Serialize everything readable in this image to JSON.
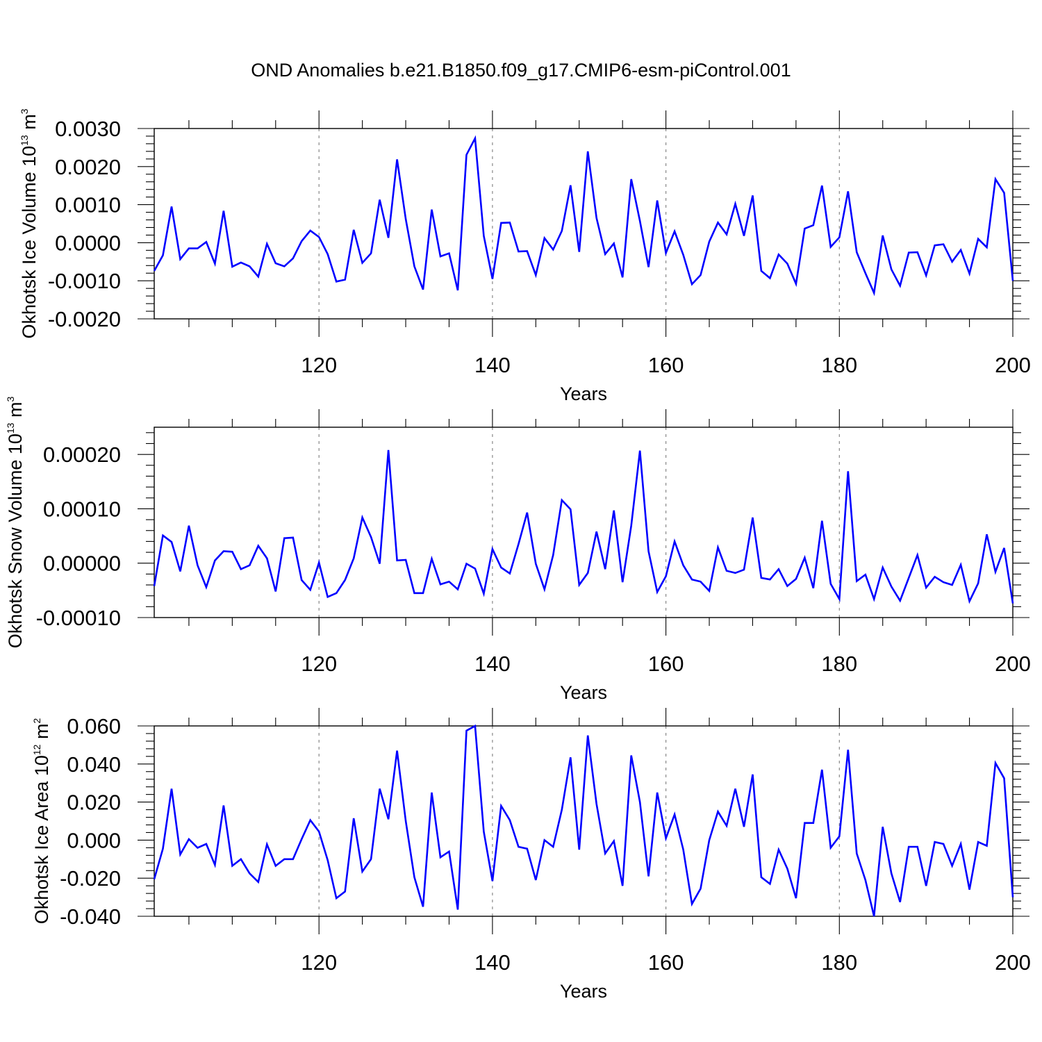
{
  "title": "OND Anomalies b.e21.B1850.f09_g17.CMIP6-esm-piControl.001",
  "colors": {
    "series": "#0000ff",
    "grid": "#888888",
    "axis": "#000000"
  },
  "chart_data": [
    {
      "type": "line",
      "xlabel": "Years",
      "ylabel": {
        "main": "Okhotsk Ice Volume 10",
        "sup_exp": "13",
        "unit": " m",
        "sup_unit": "3"
      },
      "xlim": [
        101,
        200
      ],
      "ylim": [
        -0.002,
        0.003
      ],
      "xticks": [
        120,
        140,
        160,
        180,
        200
      ],
      "xtick_labels": [
        "120",
        "140",
        "160",
        "180",
        "200"
      ],
      "yticks": [
        -0.002,
        -0.001,
        0.0,
        0.001,
        0.002,
        0.003
      ],
      "ytick_labels": [
        "-0.0020",
        "-0.0010",
        "0.0000",
        "0.0010",
        "0.0020",
        "0.0030"
      ],
      "grid": "vertical dashed at major x ticks",
      "series": [
        {
          "x_start": 101,
          "x_step": 1,
          "values": [
            -0.00074,
            -0.00033,
            0.00095,
            -0.00043,
            -0.00015,
            -0.00015,
            2e-05,
            -0.00055,
            0.00084,
            -0.00063,
            -0.00052,
            -0.00062,
            -0.00089,
            -3e-05,
            -0.00054,
            -0.00062,
            -0.00041,
            4e-05,
            0.00032,
            0.00015,
            -0.0003,
            -0.00102,
            -0.00097,
            0.00034,
            -0.00053,
            -0.00028,
            0.00113,
            0.00013,
            0.00219,
            0.00062,
            -0.00062,
            -0.00123,
            0.00087,
            -0.00036,
            -0.00028,
            -0.00125,
            0.00231,
            0.00274,
            0.00018,
            -0.00095,
            0.00052,
            0.00053,
            -0.00023,
            -0.00022,
            -0.00085,
            0.00012,
            -0.00018,
            0.00031,
            0.00151,
            -0.00024,
            0.0024,
            0.00065,
            -0.0003,
            -2e-05,
            -0.00091,
            0.00167,
            0.00057,
            -0.00064,
            0.00111,
            -0.00027,
            0.0003,
            -0.00032,
            -0.00109,
            -0.00085,
            3e-05,
            0.00053,
            0.00022,
            0.00102,
            0.00018,
            0.00124,
            -0.00074,
            -0.00093,
            -0.00031,
            -0.00055,
            -0.00108,
            0.00037,
            0.00046,
            0.0015,
            -0.00011,
            0.00014,
            0.00135,
            -0.00025,
            -0.0008,
            -0.00132,
            0.00019,
            -0.0007,
            -0.00113,
            -0.00026,
            -0.00025,
            -0.00086,
            -7e-05,
            -4e-05,
            -0.0005,
            -0.00019,
            -0.00081,
            0.0001,
            -0.00012,
            0.00167,
            0.00131,
            -0.001
          ]
        }
      ]
    },
    {
      "type": "line",
      "xlabel": "Years",
      "ylabel": {
        "main": "Okhotsk Snow Volume 10",
        "sup_exp": "13",
        "unit": " m",
        "sup_unit": "3"
      },
      "xlim": [
        101,
        200
      ],
      "ylim": [
        -0.0001,
        0.00025
      ],
      "xticks": [
        120,
        140,
        160,
        180,
        200
      ],
      "xtick_labels": [
        "120",
        "140",
        "160",
        "180",
        "200"
      ],
      "yticks": [
        -0.0001,
        0.0,
        0.0001,
        0.0002
      ],
      "ytick_labels": [
        "-0.00010",
        "0.00000",
        "0.00010",
        "0.00020"
      ],
      "grid": "vertical dashed at major x ticks",
      "series": [
        {
          "x_start": 101,
          "x_step": 1,
          "values": [
            -4.2e-05,
            5.1e-05,
            3.9e-05,
            -1.5e-05,
            6.9e-05,
            -4e-06,
            -4.4e-05,
            5e-06,
            2.2e-05,
            2.1e-05,
            -1.1e-05,
            -4e-06,
            3.2e-05,
            9e-06,
            -5.2e-05,
            4.6e-05,
            4.7e-05,
            -3.1e-05,
            -4.9e-05,
            1e-06,
            -6.2e-05,
            -5.5e-05,
            -3.1e-05,
            9e-06,
            8.4e-05,
            4.8e-05,
            -1e-06,
            0.000208,
            5e-06,
            6e-06,
            -5.5e-05,
            -5.5e-05,
            8e-06,
            -3.9e-05,
            -3.4e-05,
            -4.8e-05,
            -1e-06,
            -1e-05,
            -5.6e-05,
            2.6e-05,
            -8e-06,
            -1.9e-05,
            3.5e-05,
            9.3e-05,
            -1e-06,
            -4.8e-05,
            1.5e-05,
            0.000116,
            9.9e-05,
            -4e-05,
            -1.8e-05,
            5.8e-05,
            -1.1e-05,
            9.7e-05,
            -3.5e-05,
            6.9e-05,
            0.000207,
            2.2e-05,
            -5.3e-05,
            -2.4e-05,
            4e-05,
            -4e-06,
            -3e-05,
            -3.4e-05,
            -5.1e-05,
            2.9e-05,
            -1.4e-05,
            -1.8e-05,
            -1.2e-05,
            8.4e-05,
            -2.7e-05,
            -3e-05,
            -1.1e-05,
            -4.2e-05,
            -2.9e-05,
            1e-05,
            -4.6e-05,
            7.8e-05,
            -3.8e-05,
            -6.6e-05,
            0.000169,
            -3.3e-05,
            -2.1e-05,
            -6.6e-05,
            -8e-06,
            -4.3e-05,
            -6.9e-05,
            -2.7e-05,
            1.5e-05,
            -4.5e-05,
            -2.5e-05,
            -3.5e-05,
            -4e-05,
            -3e-06,
            -7e-05,
            -3.7e-05,
            5.3e-05,
            -1.6e-05,
            2.8e-05,
            -7.4e-05
          ]
        }
      ]
    },
    {
      "type": "line",
      "xlabel": "Years",
      "ylabel": {
        "main": "Okhotsk Ice Area 10",
        "sup_exp": "12",
        "unit": " m",
        "sup_unit": "2"
      },
      "xlim": [
        101,
        200
      ],
      "ylim": [
        -0.04,
        0.06
      ],
      "xticks": [
        120,
        140,
        160,
        180,
        200
      ],
      "xtick_labels": [
        "120",
        "140",
        "160",
        "180",
        "200"
      ],
      "yticks": [
        -0.04,
        -0.02,
        0.0,
        0.02,
        0.04,
        0.06
      ],
      "ytick_labels": [
        "-0.040",
        "-0.020",
        "0.000",
        "0.020",
        "0.040",
        "0.060"
      ],
      "grid": "vertical dashed at major x ticks",
      "series": [
        {
          "x_start": 101,
          "x_step": 1,
          "values": [
            -0.0205,
            -0.0045,
            0.027,
            -0.0075,
            0.0005,
            -0.004,
            -0.002,
            -0.013,
            0.0182,
            -0.0135,
            -0.01,
            -0.0175,
            -0.022,
            -0.0022,
            -0.0135,
            -0.01,
            -0.01,
            0.0005,
            0.0105,
            0.0045,
            -0.0105,
            -0.0305,
            -0.027,
            0.0115,
            -0.0165,
            -0.01,
            0.027,
            0.011,
            0.047,
            0.01,
            -0.0195,
            -0.035,
            0.025,
            -0.009,
            -0.006,
            -0.0365,
            0.0575,
            0.06,
            0.0045,
            -0.0215,
            0.018,
            0.0105,
            -0.0035,
            -0.0045,
            -0.021,
            0.0,
            -0.0035,
            0.016,
            0.0435,
            -0.005,
            0.055,
            0.019,
            -0.007,
            -0.0005,
            -0.024,
            0.0445,
            0.02,
            -0.019,
            0.025,
            0.001,
            0.0135,
            -0.005,
            -0.0335,
            -0.0255,
            -0.0,
            0.015,
            0.0075,
            0.027,
            0.007,
            0.0345,
            -0.0195,
            -0.023,
            -0.005,
            -0.015,
            -0.0305,
            0.009,
            0.009,
            0.037,
            -0.004,
            0.002,
            0.0475,
            -0.007,
            -0.021,
            -0.04,
            0.007,
            -0.0175,
            -0.0325,
            -0.0035,
            -0.0035,
            -0.024,
            -0.001,
            -0.002,
            -0.0135,
            -0.002,
            -0.026,
            -0.001,
            -0.003,
            0.0405,
            0.0325,
            -0.03
          ]
        }
      ]
    }
  ]
}
